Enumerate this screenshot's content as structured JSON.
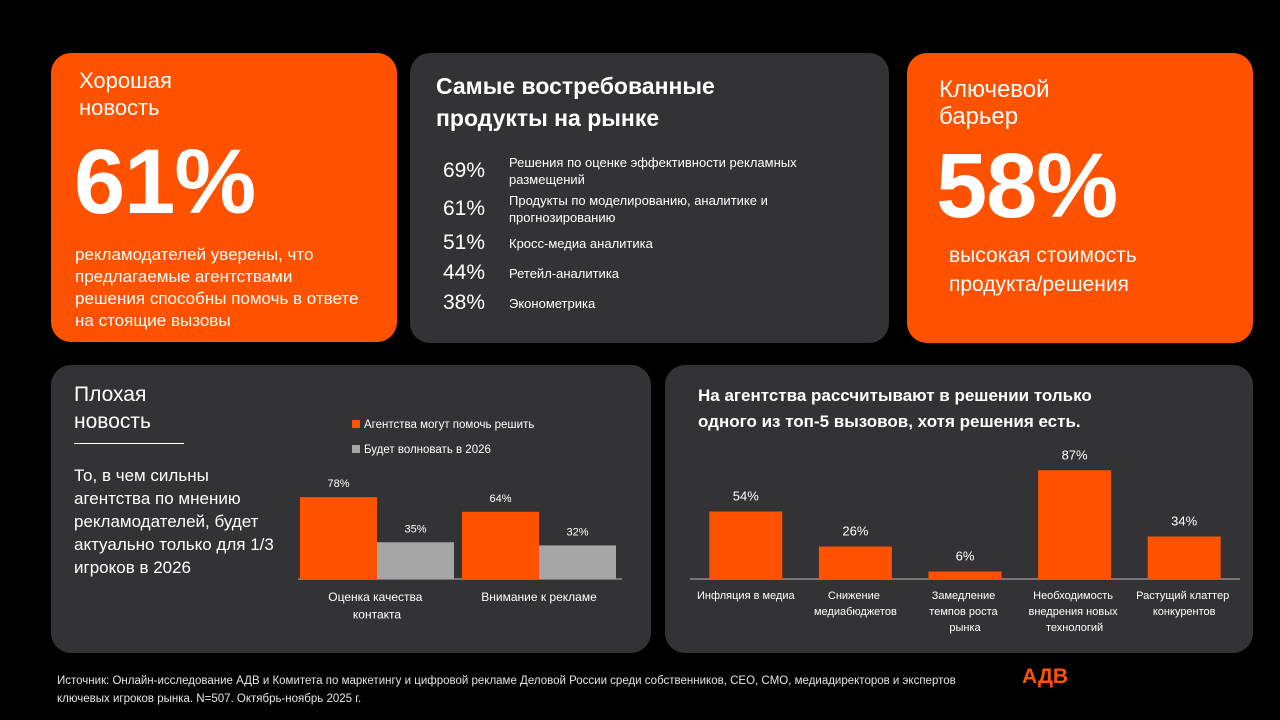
{
  "good": {
    "title": "Хорошая новость",
    "value": "61%",
    "text": "рекламодателей уверены, что предлагаемые агентствами решения способны помочь в ответе на стоящие вызовы"
  },
  "products": {
    "title": "Самые востребованные продукты на рынке",
    "items": [
      {
        "value": "69%",
        "label": "Решения по оценке эффективности рекламных размещений"
      },
      {
        "value": "61%",
        "label": "Продукты по моделированию, аналитике и прогнозированию"
      },
      {
        "value": "51%",
        "label": "Кросс-медиа аналитика"
      },
      {
        "value": "44%",
        "label": "Ретейл-аналитика"
      },
      {
        "value": "38%",
        "label": "Эконометрика"
      }
    ]
  },
  "barrier": {
    "title": "Ключевой барьер",
    "value": "58%",
    "text": "высокая стоимость продукта/решения"
  },
  "bad": {
    "title": "Плохая новость",
    "text": "То, в чем сильны агентства по мнению рекламодателей, будет актуально только для 1/3 игроков в 2026"
  },
  "chart_data": [
    {
      "type": "grouped-bar",
      "categories": [
        "Оценка качества контакта",
        "Внимание к рекламе"
      ],
      "series": [
        {
          "name": "Агентства могут помочь решить",
          "color": "#ff5200",
          "values": [
            78,
            64
          ],
          "value_labels": [
            "78%",
            "64%"
          ]
        },
        {
          "name": "Будет волновать в 2026",
          "color": "#a6a6a6",
          "values": [
            35,
            32
          ],
          "value_labels": [
            "35%",
            "32%"
          ]
        }
      ]
    },
    {
      "type": "bar",
      "title": "На агентства рассчитывают в решении только одного из топ-5 вызовов, хотя решения есть.",
      "categories": [
        "Инфляция в медиа",
        "Снижение медиабюджетов",
        "Замедление темпов роста рынка",
        "Необходимость внедрения новых технологий",
        "Растущий клаттер конкурентов"
      ],
      "values": [
        54,
        26,
        6,
        87,
        34
      ],
      "value_labels": [
        "54%",
        "26%",
        "6%",
        "87%",
        "34%"
      ],
      "color": "#ff5200"
    }
  ],
  "footer": {
    "source": "Источник: Онлайн-исследование АДВ и Комитета по маркетингу и цифровой рекламе Деловой России среди собственников, CEO, CMO, медиадиректоров и экспертов ключевых игроков рынка. N=507. Октябрь-ноябрь 2025 г.",
    "logo": "АДВ"
  }
}
